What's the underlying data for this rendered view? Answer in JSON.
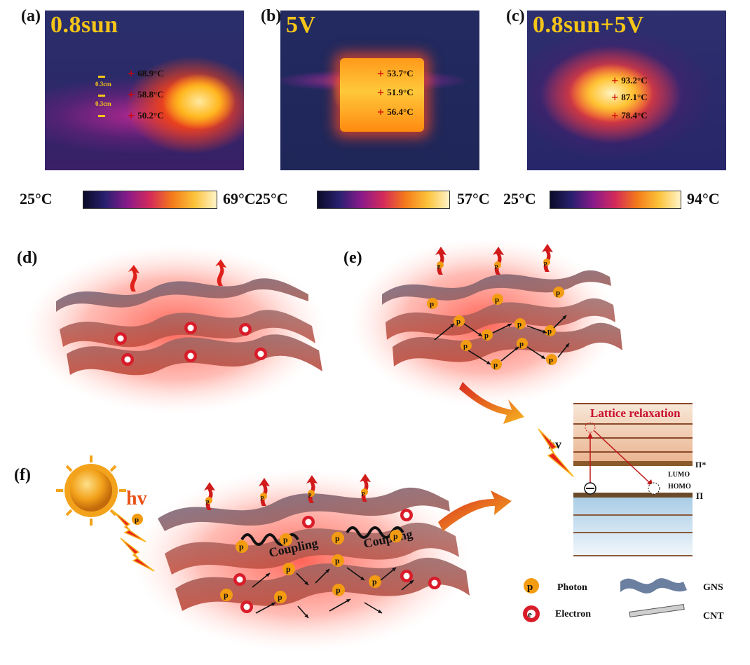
{
  "panels": {
    "a": {
      "label": "(a)",
      "title": "0.8sun",
      "readings": [
        "68.9°C",
        "58.8°C",
        "50.2°C"
      ],
      "dims": [
        "0.3cm",
        "0.3cm"
      ],
      "scale_min": "25°C",
      "scale_max": "69°C"
    },
    "b": {
      "label": "(b)",
      "title": "5V",
      "readings": [
        "53.7°C",
        "51.9°C",
        "56.4°C"
      ],
      "scale_min": "25°C",
      "scale_max": "57°C"
    },
    "c": {
      "label": "(c)",
      "title": "0.8sun+5V",
      "readings": [
        "93.2°C",
        "87.1°C",
        "78.4°C"
      ],
      "scale_min": "25°C",
      "scale_max": "94°C"
    },
    "d": {
      "label": "(d)"
    },
    "e": {
      "label": "(e)"
    },
    "f": {
      "label": "(f)",
      "hv": "hv",
      "coupling": "Coupling"
    }
  },
  "energy_diagram": {
    "title": "Lattice relaxation",
    "hv": "hv",
    "pi_star": "Π*",
    "pi": "Π",
    "lumo": "LUMO",
    "homo": "HOMO"
  },
  "legend": {
    "photon": "Photon",
    "electron": "Electron",
    "gns": "GNS",
    "cnt": "CNT",
    "photon_glyph": "p",
    "electron_glyph": "e"
  },
  "colors": {
    "photon": "#f39c12",
    "electron": "#d91c2a",
    "arrow_red": "#d11a1a",
    "title_yellow": "#f5c518",
    "glow": "#ff5a4a"
  }
}
